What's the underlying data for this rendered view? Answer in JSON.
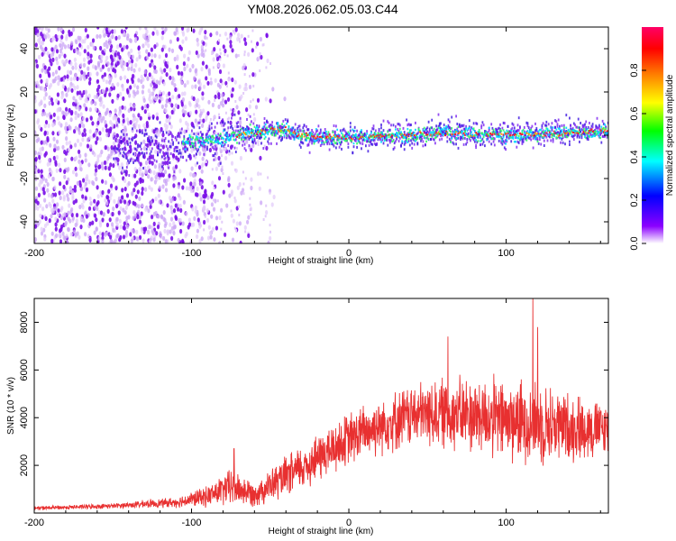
{
  "title": "YM08.2026.062.05.03.C44",
  "chart_data": [
    {
      "type": "heatmap",
      "name": "spectrogram",
      "xlabel": "Height of straight line (km)",
      "ylabel": "Frequency (Hz)",
      "xlim": [
        -200,
        165
      ],
      "ylim": [
        -50,
        50
      ],
      "xticks": [
        -200,
        -100,
        0,
        100
      ],
      "yticks": [
        -40,
        -20,
        0,
        20,
        40
      ],
      "colorbar": {
        "label": "Normalized spectral amplitude",
        "range": [
          0,
          1
        ],
        "ticks": [
          "0.0",
          "0.2",
          "0.4",
          "0.6",
          "0.8"
        ],
        "colors": [
          "#ffffff",
          "#8b00ff",
          "#0000ff",
          "#00ffff",
          "#00ff00",
          "#ffff00",
          "#ff7f00",
          "#ff0000",
          "#ff0066"
        ]
      },
      "signal_center_line": [
        {
          "x": -140,
          "freq": -6
        },
        {
          "x": -100,
          "freq": -3
        },
        {
          "x": -60,
          "freq": 1
        },
        {
          "x": -45,
          "freq": 3
        },
        {
          "x": -35,
          "freq": 1
        },
        {
          "x": -20,
          "freq": -1
        },
        {
          "x": 0,
          "freq": -1
        },
        {
          "x": 30,
          "freq": 0
        },
        {
          "x": 60,
          "freq": 1
        },
        {
          "x": 100,
          "freq": 0
        },
        {
          "x": 130,
          "freq": 1
        },
        {
          "x": 165,
          "freq": 2
        }
      ],
      "noise_region": {
        "x": [
          -200,
          -90
        ],
        "freq": [
          -50,
          50
        ]
      }
    },
    {
      "type": "line",
      "name": "snr",
      "xlabel": "Height of straight line (km)",
      "ylabel": "SNR (10 * v/v)",
      "xlim": [
        -200,
        165
      ],
      "ylim": [
        0,
        9000
      ],
      "xticks": [
        -200,
        -100,
        0,
        100
      ],
      "yticks": [
        2000,
        4000,
        6000,
        8000
      ],
      "color": "#e83030",
      "envelope": [
        {
          "x": -200,
          "mean": 200,
          "spread": 100
        },
        {
          "x": -150,
          "mean": 300,
          "spread": 120
        },
        {
          "x": -110,
          "mean": 450,
          "spread": 250
        },
        {
          "x": -90,
          "mean": 700,
          "spread": 500
        },
        {
          "x": -75,
          "mean": 1100,
          "spread": 900
        },
        {
          "x": -60,
          "mean": 800,
          "spread": 600
        },
        {
          "x": -40,
          "mean": 1500,
          "spread": 1000
        },
        {
          "x": -20,
          "mean": 2300,
          "spread": 1200
        },
        {
          "x": 0,
          "mean": 3100,
          "spread": 1300
        },
        {
          "x": 20,
          "mean": 3700,
          "spread": 1400
        },
        {
          "x": 40,
          "mean": 4100,
          "spread": 1500
        },
        {
          "x": 60,
          "mean": 4200,
          "spread": 1700
        },
        {
          "x": 80,
          "mean": 4100,
          "spread": 1900
        },
        {
          "x": 100,
          "mean": 3900,
          "spread": 2000
        },
        {
          "x": 120,
          "mean": 3800,
          "spread": 2000
        },
        {
          "x": 140,
          "mean": 3600,
          "spread": 1700
        },
        {
          "x": 165,
          "mean": 3500,
          "spread": 1300
        }
      ],
      "peaks": [
        {
          "x": -73,
          "y": 2700
        },
        {
          "x": 63,
          "y": 7400
        },
        {
          "x": 117,
          "y": 9000
        },
        {
          "x": 120,
          "y": 7800
        }
      ]
    }
  ]
}
